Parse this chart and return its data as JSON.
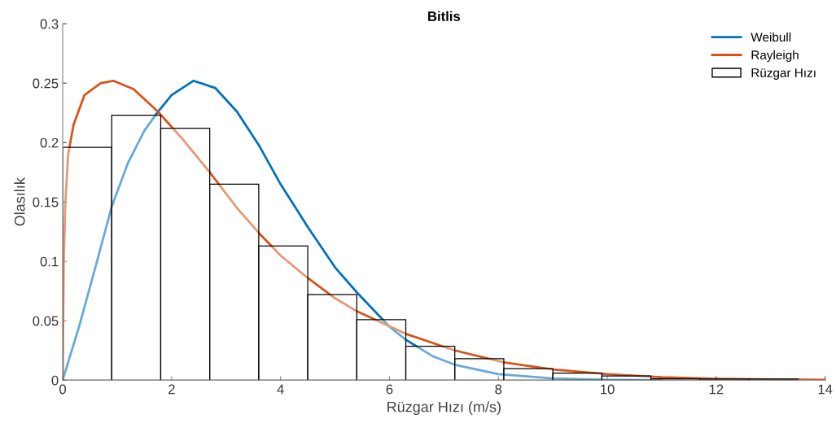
{
  "chart_data": {
    "type": "line",
    "title": "Bitlis",
    "xlabel": "Rüzgar Hızı (m/s)",
    "ylabel": "Olasılık",
    "xlim": [
      0,
      14
    ],
    "ylim": [
      0,
      0.3
    ],
    "xticks": [
      0,
      2,
      4,
      6,
      8,
      10,
      12,
      14
    ],
    "yticks": [
      0,
      0.05,
      0.1,
      0.15,
      0.2,
      0.25,
      0.3
    ],
    "grid": false,
    "legend": "top right",
    "series": [
      {
        "name": "Weibull",
        "color": "#0072bd",
        "x": [
          0,
          0.3,
          0.6,
          0.9,
          1.2,
          1.5,
          1.75,
          2.0,
          2.4,
          2.8,
          3.2,
          3.6,
          4.0,
          4.5,
          5.0,
          5.4,
          6.0,
          6.3,
          6.8,
          7.2,
          8.0,
          9.0,
          10.0,
          11.0
        ],
        "values": [
          0,
          0.045,
          0.095,
          0.146,
          0.183,
          0.21,
          0.226,
          0.24,
          0.252,
          0.246,
          0.226,
          0.198,
          0.165,
          0.129,
          0.095,
          0.074,
          0.045,
          0.034,
          0.02,
          0.013,
          0.005,
          0.0015,
          0.0003,
          0
        ]
      },
      {
        "name": "Rayleigh",
        "color": "#d95319",
        "x": [
          0,
          0.02,
          0.05,
          0.1,
          0.2,
          0.4,
          0.7,
          0.93,
          1.3,
          1.75,
          2.2,
          2.7,
          3.2,
          3.6,
          4.0,
          4.5,
          5.0,
          5.4,
          6.3,
          7.2,
          8.1,
          9.0,
          10.0,
          11.0,
          12.0,
          13.0,
          14.0
        ],
        "values": [
          0,
          0.1,
          0.15,
          0.19,
          0.215,
          0.24,
          0.25,
          0.252,
          0.245,
          0.226,
          0.203,
          0.175,
          0.145,
          0.124,
          0.105,
          0.086,
          0.069,
          0.058,
          0.039,
          0.025,
          0.015,
          0.009,
          0.005,
          0.0025,
          0.0012,
          0.0006,
          0.0003
        ]
      },
      {
        "name": "Rüzgar Hızı",
        "type": "histogram",
        "color": "#ffffff",
        "bins": [
          0,
          0.9,
          1.8,
          2.7,
          3.6,
          4.5,
          5.4,
          6.3,
          7.2,
          8.1,
          9.0,
          9.9,
          10.8,
          11.7,
          12.6,
          13.5
        ],
        "values": [
          0.196,
          0.223,
          0.212,
          0.165,
          0.113,
          0.072,
          0.051,
          0.0285,
          0.018,
          0.0097,
          0.006,
          0.0036,
          0.0012,
          0.001,
          0.001
        ]
      }
    ]
  }
}
